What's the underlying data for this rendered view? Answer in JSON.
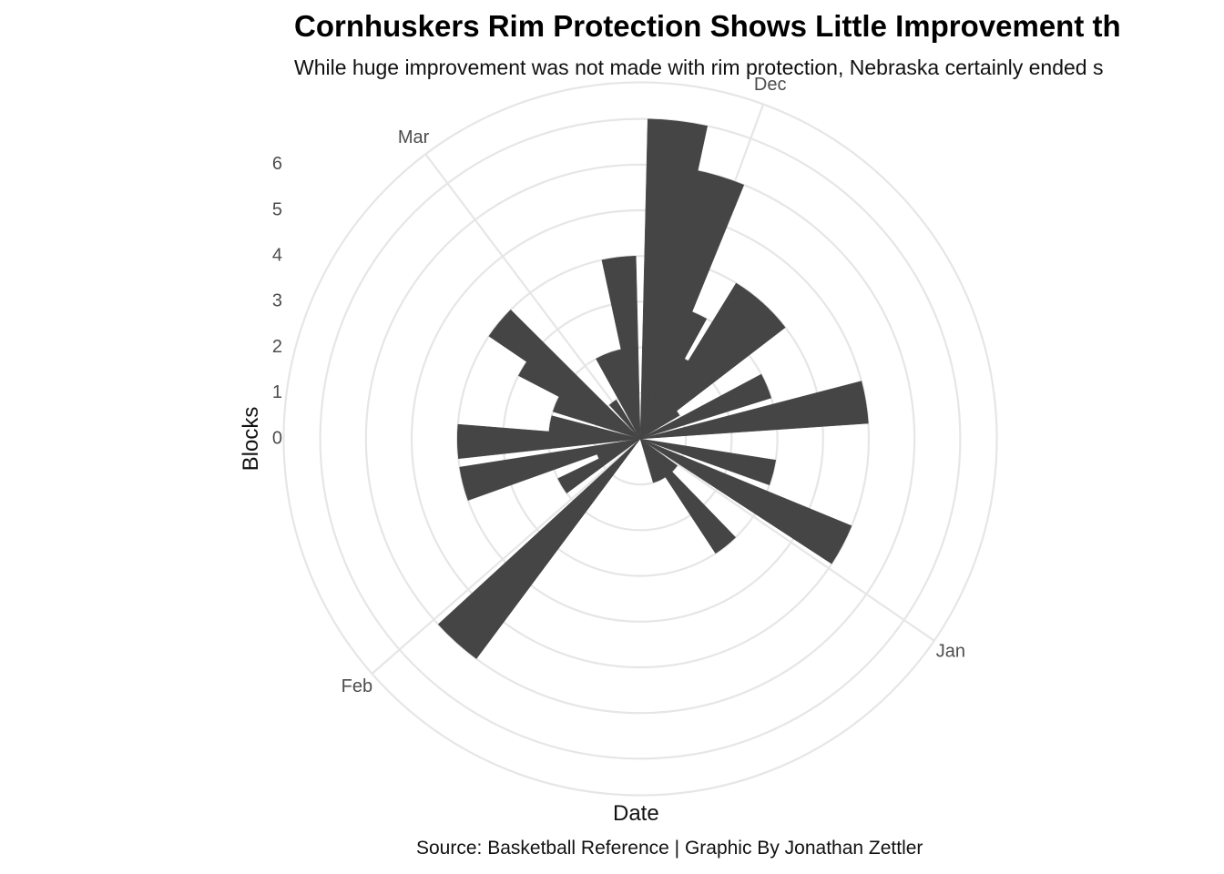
{
  "chart_data": {
    "type": "bar",
    "coordinate_system": "polar",
    "title": "Cornhuskers Rim Protection Shows Little Improvement th",
    "subtitle": "While huge improvement was not made with rim protection, Nebraska certainly ended s",
    "caption": "Source: Basketball Reference | Graphic By Jonathan Zettler",
    "xlabel": "Date",
    "ylabel": "Blocks",
    "ylim": [
      -1,
      6.8
    ],
    "radial_ticks": [
      "0",
      "1",
      "2",
      "3",
      "4",
      "5",
      "6"
    ],
    "angular_ticks": [
      {
        "label": "Dec",
        "date": "2020-12-01"
      },
      {
        "label": "Jan",
        "date": "2021-01-01"
      },
      {
        "label": "Feb",
        "date": "2021-02-01"
      },
      {
        "label": "Mar",
        "date": "2021-03-01"
      }
    ],
    "date_range": [
      "2020-11-25",
      "2021-03-12"
    ],
    "grid": true,
    "bar_color": "#454545",
    "grid_color": "#e6e6e6",
    "values": [
      {
        "date": "2020-11-27",
        "blocks": 6
      },
      {
        "date": "2020-11-30",
        "blocks": 5
      },
      {
        "date": "2020-12-02",
        "blocks": 2
      },
      {
        "date": "2020-12-03",
        "blocks": 1
      },
      {
        "date": "2020-12-06",
        "blocks": 3
      },
      {
        "date": "2020-12-09",
        "blocks": 3
      },
      {
        "date": "2020-12-11",
        "blocks": 0
      },
      {
        "date": "2020-12-15",
        "blocks": 2
      },
      {
        "date": "2020-12-19",
        "blocks": 4
      },
      {
        "date": "2020-12-26",
        "blocks": 2
      },
      {
        "date": "2020-12-30",
        "blocks": 4
      },
      {
        "date": "2021-01-03",
        "blocks": 0
      },
      {
        "date": "2021-01-06",
        "blocks": 2
      },
      {
        "date": "2021-01-09",
        "blocks": 0
      },
      {
        "date": "2021-01-11",
        "blocks": 0
      },
      {
        "date": "2021-01-30",
        "blocks": 5
      },
      {
        "date": "2021-02-04",
        "blocks": 1
      },
      {
        "date": "2021-02-06",
        "blocks": 0
      },
      {
        "date": "2021-02-09",
        "blocks": 3
      },
      {
        "date": "2021-02-13",
        "blocks": 3
      },
      {
        "date": "2021-02-16",
        "blocks": 1
      },
      {
        "date": "2021-02-20",
        "blocks": 1
      },
      {
        "date": "2021-02-23",
        "blocks": 2
      },
      {
        "date": "2021-02-25",
        "blocks": 3
      },
      {
        "date": "2021-03-01",
        "blocks": 0
      },
      {
        "date": "2021-03-05",
        "blocks": 1
      },
      {
        "date": "2021-03-08",
        "blocks": 1
      },
      {
        "date": "2021-03-10",
        "blocks": 3
      }
    ]
  }
}
